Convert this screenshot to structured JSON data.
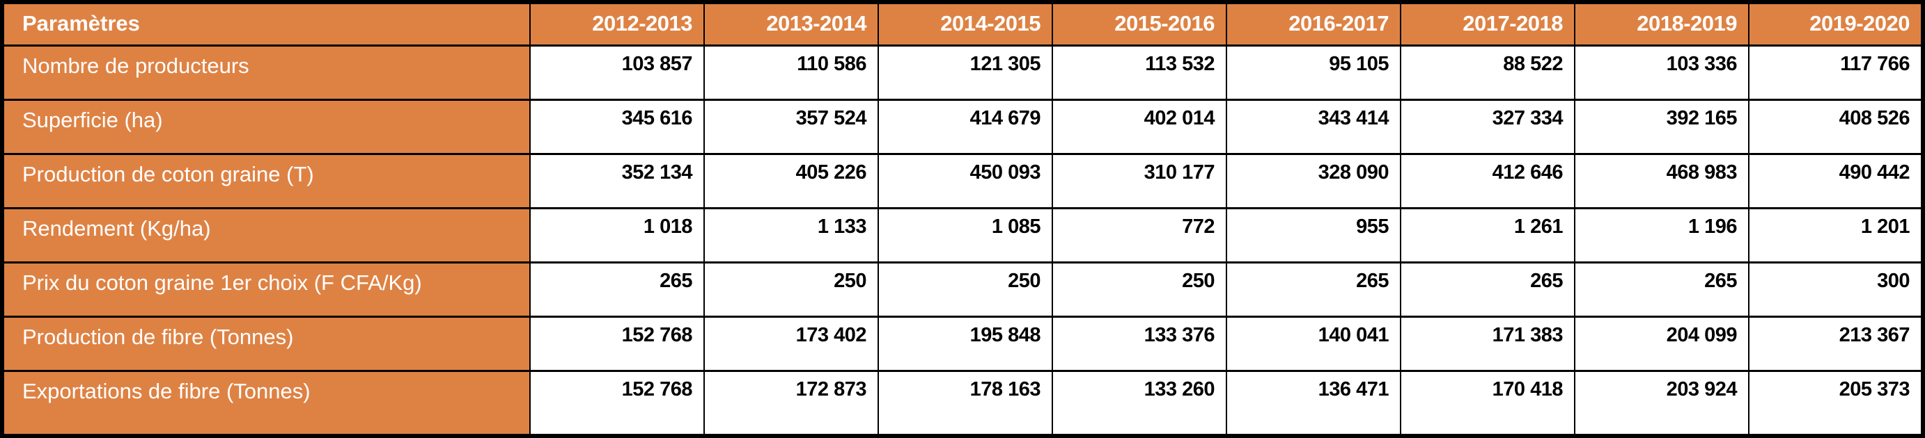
{
  "colors": {
    "header_bg": "#DE8244",
    "border": "#000000",
    "header_text": "#FFFFFF",
    "value_text": "#000000"
  },
  "table": {
    "header": {
      "param_label": "Paramètres",
      "years": [
        "2012-2013",
        "2013-2014",
        "2014-2015",
        "2015-2016",
        "2016-2017",
        "2017-2018",
        "2018-2019",
        "2019-2020"
      ]
    },
    "rows": [
      {
        "label": "Nombre de producteurs",
        "values": [
          "103 857",
          "110 586",
          "121 305",
          "113 532",
          "95 105",
          "88 522",
          "103 336",
          "117 766"
        ]
      },
      {
        "label": "Superficie (ha)",
        "values": [
          "345 616",
          "357 524",
          "414 679",
          "402 014",
          "343 414",
          "327 334",
          "392 165",
          "408 526"
        ]
      },
      {
        "label": "Production de coton graine (T)",
        "values": [
          "352 134",
          "405 226",
          "450 093",
          "310 177",
          "328 090",
          "412 646",
          "468 983",
          "490 442"
        ]
      },
      {
        "label": "Rendement (Kg/ha)",
        "values": [
          "1 018",
          "1 133",
          "1 085",
          "772",
          "955",
          "1 261",
          "1 196",
          "1 201"
        ]
      },
      {
        "label": "Prix du coton graine 1er choix (F CFA/Kg)",
        "values": [
          "265",
          "250",
          "250",
          "250",
          "265",
          "265",
          "265",
          "300"
        ]
      },
      {
        "label": "Production de fibre (Tonnes)",
        "values": [
          "152 768",
          "173 402",
          "195 848",
          "133 376",
          "140 041",
          "171 383",
          "204 099",
          "213 367"
        ]
      },
      {
        "label": "Exportations de fibre (Tonnes)",
        "values": [
          "152 768",
          "172 873",
          "178 163",
          "133 260",
          "136 471",
          "170 418",
          "203 924",
          "205 373"
        ]
      }
    ]
  }
}
